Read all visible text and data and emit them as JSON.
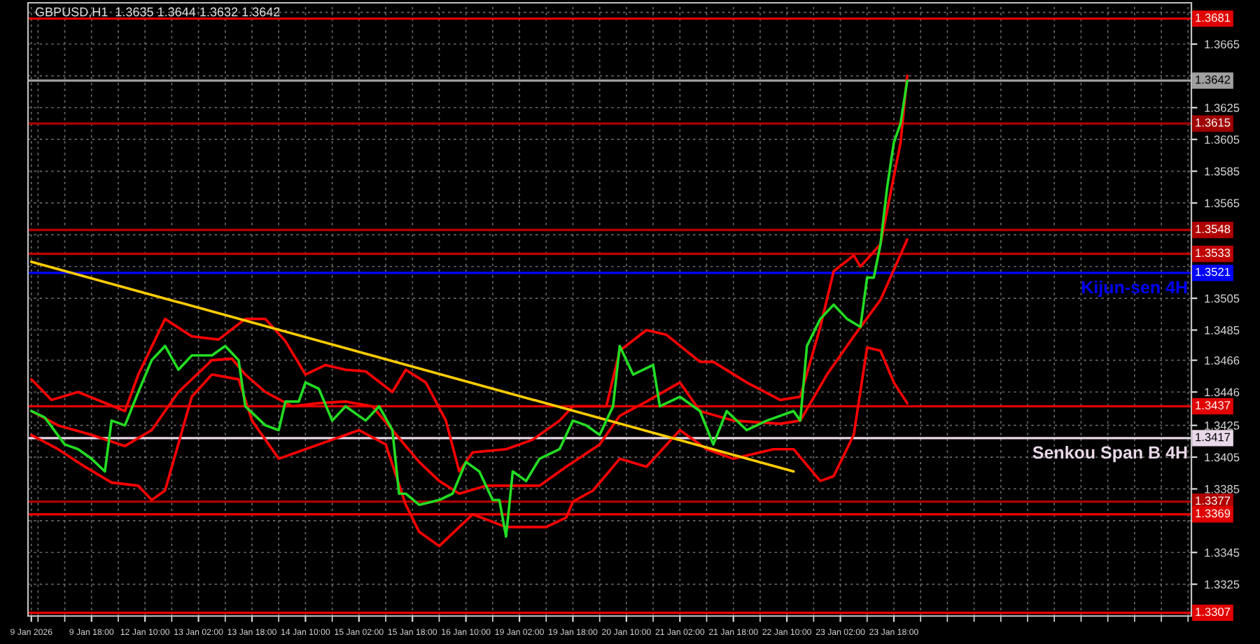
{
  "chart_data": {
    "type": "line",
    "title": "GBPUSD,H1  1.3635 1.3644 1.3632 1.3642",
    "categories": [
      "9 Jan 2026",
      null,
      null,
      null,
      null,
      null,
      null,
      null,
      null,
      "9 Jan 18:00",
      null,
      null,
      null,
      null,
      null,
      null,
      null,
      "12 Jan 10:00",
      null,
      null,
      null,
      null,
      null,
      null,
      null,
      "13 Jan 02:00",
      null,
      null,
      null,
      null,
      null,
      null,
      null,
      "13 Jan 18:00",
      null,
      null,
      null,
      null,
      null,
      null,
      null,
      "14 Jan 10:00",
      null,
      null,
      null,
      null,
      null,
      null,
      null,
      "15 Jan 02:00",
      null,
      null,
      null,
      null,
      null,
      null,
      null,
      "15 Jan 18:00",
      null,
      null,
      null,
      null,
      null,
      null,
      null,
      "16 Jan 10:00",
      null,
      null,
      null,
      null,
      null,
      null,
      null,
      "19 Jan 02:00",
      null,
      null,
      null,
      null,
      null,
      null,
      null,
      "19 Jan 18:00",
      null,
      null,
      null,
      null,
      null,
      null,
      null,
      "20 Jan 10:00",
      null,
      null,
      null,
      null,
      null,
      null,
      null,
      "21 Jan 02:00",
      null,
      null,
      null,
      null,
      null,
      null,
      null,
      "21 Jan 18:00",
      null,
      null,
      null,
      null,
      null,
      null,
      null,
      "22 Jan 10:00",
      null,
      null,
      null,
      null,
      null,
      null,
      null,
      "23 Jan 02:00",
      null,
      null,
      null,
      null,
      null,
      null,
      null,
      "23 Jan 18:00",
      null,
      null,
      null,
      null,
      null,
      null,
      null,
      null,
      null,
      null,
      null,
      null,
      null,
      null,
      null,
      null,
      null,
      null,
      null,
      null,
      null,
      null,
      null,
      null,
      null,
      null,
      null,
      null,
      null,
      null,
      null,
      null,
      null,
      null,
      null,
      null,
      null,
      null,
      null,
      null,
      null,
      null,
      null,
      null
    ],
    "series": [
      {
        "color": "#22dd22",
        "values": [
          1.3434,
          null,
          1.343,
          null,
          null,
          1.3413,
          null,
          1.341,
          null,
          1.3404,
          null,
          1.3396,
          1.3428,
          null,
          1.3425,
          null,
          1.3446,
          null,
          1.3466,
          null,
          1.3475,
          null,
          1.346,
          null,
          1.3469,
          null,
          null,
          1.3469,
          null,
          1.3475,
          null,
          1.3466,
          1.3437,
          null,
          null,
          1.3425,
          null,
          1.3422,
          1.344,
          null,
          1.344,
          1.3452,
          null,
          1.3448,
          null,
          1.3428,
          null,
          1.3437,
          null,
          null,
          1.3428,
          null,
          1.3437,
          null,
          1.3422,
          1.3382,
          1.3382,
          null,
          1.3375,
          null,
          null,
          1.3378,
          null,
          1.3382,
          null,
          1.3402,
          null,
          1.3396,
          null,
          1.3378,
          1.3378,
          1.3355,
          1.3396,
          null,
          1.339,
          null,
          1.3404,
          null,
          null,
          1.341,
          null,
          1.3428,
          null,
          1.3425,
          null,
          1.3419,
          null,
          1.3437,
          1.3475,
          null,
          1.3457,
          null,
          null,
          1.3463,
          1.3437,
          null,
          null,
          1.3443,
          null,
          null,
          1.3434,
          null,
          1.3413,
          null,
          1.3434,
          null,
          null,
          1.3422,
          null,
          null,
          1.3428,
          null,
          null,
          null,
          1.3434,
          1.3428,
          1.3475,
          null,
          1.3492,
          null,
          1.3501,
          null,
          1.3492,
          null,
          1.3487,
          1.3518,
          1.3518,
          1.3539,
          1.3575,
          1.3603,
          1.3615,
          1.3642,
          null,
          null,
          null,
          null,
          null,
          null,
          null,
          null,
          null,
          null,
          null,
          null,
          null,
          null,
          null,
          null,
          null,
          null,
          null,
          null,
          null,
          null,
          null,
          null,
          null,
          null,
          null,
          null,
          null,
          null,
          null,
          null,
          null,
          null,
          null,
          null,
          null,
          null,
          null,
          null,
          null,
          null
        ]
      },
      {
        "color": "#ff0000",
        "values": [
          1.3454,
          null,
          null,
          1.3441,
          null,
          null,
          null,
          1.3446,
          null,
          null,
          null,
          null,
          null,
          null,
          1.3434,
          null,
          1.3457,
          null,
          null,
          null,
          1.3492,
          null,
          null,
          null,
          1.3481,
          null,
          null,
          null,
          1.3479,
          null,
          null,
          null,
          1.3492,
          null,
          null,
          1.3492,
          null,
          null,
          1.3478,
          null,
          null,
          1.3457,
          null,
          null,
          1.3463,
          null,
          null,
          1.346,
          null,
          null,
          1.3459,
          null,
          null,
          null,
          1.3446,
          null,
          1.346,
          null,
          null,
          1.3452,
          null,
          null,
          1.3428,
          null,
          1.3396,
          null,
          1.3408,
          null,
          null,
          null,
          null,
          1.341,
          null,
          null,
          null,
          1.3416,
          null,
          null,
          null,
          1.3428,
          null,
          1.3437,
          null,
          null,
          null,
          null,
          1.3437,
          null,
          1.3472,
          null,
          null,
          null,
          1.3485,
          null,
          null,
          1.3482,
          null,
          null,
          null,
          null,
          1.3465,
          null,
          1.3465,
          null,
          null,
          null,
          null,
          1.3452,
          null,
          null,
          null,
          null,
          1.3441,
          null,
          null,
          1.3443,
          null,
          null,
          1.3487,
          null,
          1.3522,
          null,
          null,
          1.3532,
          1.3525,
          null,
          null,
          1.3539,
          null,
          null,
          1.3603,
          1.3645,
          null,
          null,
          null,
          null,
          null,
          null,
          null,
          null,
          null,
          null,
          null,
          null,
          null,
          null,
          null,
          null,
          null,
          null,
          null,
          null,
          null,
          null,
          null,
          null,
          null,
          null,
          null,
          null,
          null,
          null,
          null,
          null,
          null,
          null,
          null,
          null,
          null,
          null,
          null,
          null,
          null,
          null
        ]
      },
      {
        "color": "#ff0000",
        "values": [
          1.3434,
          null,
          null,
          null,
          1.3425,
          null,
          null,
          null,
          null,
          1.3419,
          null,
          null,
          null,
          null,
          1.3412,
          null,
          null,
          null,
          1.3422,
          null,
          null,
          null,
          1.3446,
          null,
          null,
          null,
          null,
          1.3466,
          null,
          null,
          1.3467,
          null,
          1.3457,
          null,
          null,
          1.3446,
          null,
          null,
          null,
          1.3437,
          null,
          null,
          null,
          1.3439,
          null,
          null,
          null,
          1.344,
          null,
          null,
          null,
          1.3437,
          null,
          null,
          1.3422,
          null,
          null,
          null,
          1.3402,
          null,
          null,
          1.339,
          null,
          null,
          1.3382,
          null,
          null,
          null,
          1.3387,
          null,
          null,
          1.3387,
          null,
          null,
          null,
          null,
          1.3387,
          null,
          null,
          null,
          1.3399,
          null,
          null,
          null,
          null,
          1.3413,
          null,
          null,
          1.3431,
          null,
          null,
          null,
          1.344,
          null,
          null,
          null,
          null,
          1.3452,
          null,
          null,
          1.3434,
          null,
          null,
          null,
          null,
          1.3428,
          null,
          null,
          null,
          null,
          null,
          null,
          1.3426,
          null,
          null,
          1.3428,
          null,
          null,
          null,
          1.3457,
          null,
          null,
          null,
          1.3481,
          null,
          null,
          null,
          1.3504,
          null,
          null,
          null,
          1.3542,
          null,
          null,
          null,
          null,
          null,
          null,
          null,
          null,
          null,
          null,
          null,
          null,
          null,
          null,
          null,
          null,
          null,
          null,
          null,
          null,
          null,
          null,
          null,
          null,
          null,
          null,
          null,
          null,
          null,
          null,
          null,
          null,
          null,
          null,
          null,
          null,
          null,
          null,
          null,
          null,
          null,
          null
        ]
      },
      {
        "color": "#ff0000",
        "values": [
          1.3419,
          null,
          null,
          null,
          1.341,
          null,
          null,
          null,
          1.3399,
          null,
          null,
          null,
          1.3389,
          null,
          null,
          null,
          1.3387,
          null,
          1.3378,
          null,
          1.3384,
          null,
          null,
          null,
          1.3443,
          null,
          null,
          1.3457,
          null,
          null,
          null,
          1.3454,
          null,
          1.3428,
          null,
          null,
          null,
          1.3404,
          null,
          null,
          null,
          1.341,
          null,
          null,
          null,
          1.3416,
          null,
          null,
          null,
          1.3422,
          null,
          null,
          null,
          1.3413,
          null,
          null,
          1.3375,
          null,
          1.3358,
          null,
          null,
          1.3349,
          null,
          null,
          1.3361,
          null,
          1.3369,
          null,
          null,
          null,
          null,
          1.3361,
          null,
          null,
          null,
          null,
          null,
          1.3361,
          null,
          null,
          1.3367,
          1.3377,
          null,
          null,
          1.3384,
          null,
          null,
          null,
          1.3404,
          null,
          null,
          null,
          1.3399,
          null,
          null,
          null,
          null,
          1.3422,
          null,
          null,
          null,
          1.341,
          null,
          null,
          null,
          1.3404,
          null,
          null,
          null,
          null,
          null,
          1.341,
          null,
          null,
          1.341,
          null,
          null,
          null,
          1.339,
          null,
          1.3393,
          null,
          null,
          1.3419,
          null,
          1.3474,
          null,
          1.3472,
          null,
          1.3452,
          null,
          1.3439,
          null,
          null,
          null,
          null,
          null,
          null,
          null,
          null,
          null,
          null,
          null,
          null,
          null,
          null,
          null,
          null,
          null,
          null,
          null,
          null,
          null,
          null,
          null,
          null,
          null,
          null,
          null,
          null,
          null,
          null,
          null,
          null,
          null,
          null,
          null,
          null,
          null,
          null,
          null,
          null,
          null,
          null
        ]
      },
      {
        "color": "#ffcc00",
        "values": [
          1.3528,
          null,
          null,
          null,
          null,
          null,
          null,
          null,
          null,
          null,
          null,
          null,
          null,
          null,
          null,
          null,
          null,
          null,
          null,
          null,
          null,
          null,
          null,
          null,
          null,
          null,
          null,
          null,
          null,
          null,
          null,
          null,
          null,
          null,
          null,
          null,
          null,
          null,
          null,
          null,
          null,
          null,
          null,
          null,
          null,
          null,
          null,
          null,
          null,
          null,
          null,
          null,
          null,
          null,
          null,
          null,
          null,
          null,
          null,
          null,
          null,
          null,
          null,
          null,
          null,
          null,
          null,
          null,
          null,
          null,
          null,
          null,
          null,
          null,
          null,
          null,
          null,
          null,
          null,
          null,
          null,
          null,
          null,
          null,
          null,
          null,
          null,
          null,
          null,
          null,
          null,
          null,
          null,
          null,
          null,
          null,
          null,
          null,
          null,
          null,
          null,
          null,
          null,
          null,
          null,
          null,
          null,
          null,
          null,
          null,
          null,
          null,
          null,
          null,
          1.3396,
          null,
          null,
          null,
          null,
          null,
          null,
          null,
          null,
          null,
          null,
          null,
          null,
          null,
          null,
          null,
          null,
          null,
          null,
          null,
          null,
          null,
          null,
          null,
          null,
          null,
          null,
          null,
          null,
          null,
          null,
          null,
          null,
          null,
          null,
          null,
          null,
          null,
          null,
          null,
          null,
          null,
          null,
          null,
          null,
          null,
          null,
          null,
          null,
          null,
          null,
          null,
          null,
          null,
          null,
          null,
          null,
          null,
          null,
          null
        ]
      }
    ],
    "ylim": [
      1.3305,
      1.3691
    ],
    "yticks": [
      1.3325,
      1.3345,
      {
        "value": 1.3365,
        "label": null
      },
      1.3385,
      1.3405,
      1.3425,
      1.3446,
      1.3466,
      1.3485,
      1.3505,
      {
        "value": 1.3525,
        "label": null
      },
      {
        "value": 1.3545,
        "label": null
      },
      1.3565,
      1.3585,
      1.3605,
      1.3625,
      {
        "value": 1.3645,
        "label": null
      },
      1.3665,
      {
        "value": 1.3685,
        "label": null
      }
    ],
    "ref_lines": [
      {
        "axis": "y",
        "value": 1.3681,
        "color": "#e00000",
        "label": "1.3681"
      },
      {
        "axis": "y",
        "value": 1.3642,
        "color": "#a0a0a0",
        "label": "1.3642"
      },
      {
        "axis": "y",
        "value": 1.3615,
        "color": "#a00000",
        "label": "1.3615"
      },
      {
        "axis": "y",
        "value": 1.3548,
        "color": "#b00000",
        "label": "1.3548"
      },
      {
        "axis": "y",
        "value": 1.3533,
        "color": "#c00000",
        "label": "1.3533"
      },
      {
        "axis": "y",
        "value": 1.3521,
        "color": "#0000ff",
        "label": "1.3521"
      },
      {
        "axis": "y",
        "value": 1.3437,
        "color": "#e00000",
        "label": "1.3437"
      },
      {
        "axis": "y",
        "value": 1.3417,
        "color": "#e8d8e8",
        "label": "1.3417"
      },
      {
        "axis": "y",
        "value": 1.3377,
        "color": "#b00000",
        "label": "1.3377"
      },
      {
        "axis": "y",
        "value": 1.3369,
        "color": "#e00000",
        "label": "1.3369"
      },
      {
        "axis": "y",
        "value": 1.3307,
        "color": "#e00000",
        "label": "1.3307"
      }
    ],
    "annotations": [
      {
        "text": "Kijun-sen 4H",
        "y": 1.3521
      },
      {
        "text": "Senkou Span B 4H",
        "y": 1.3417
      }
    ],
    "grid": true
  }
}
